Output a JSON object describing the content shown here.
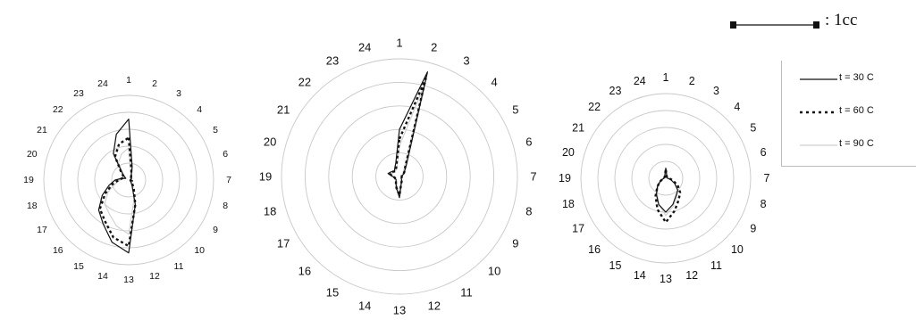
{
  "chart_data": [
    {
      "type": "radar",
      "title": "",
      "categories": [
        "1",
        "2",
        "3",
        "4",
        "5",
        "6",
        "7",
        "8",
        "9",
        "10",
        "11",
        "12",
        "13",
        "14",
        "15",
        "16",
        "17",
        "18",
        "19",
        "20",
        "21",
        "22",
        "23",
        "24"
      ],
      "rmax": 5,
      "series": [
        {
          "name": "t = 30 C",
          "values": [
            3.6,
            0.8,
            0.3,
            0.2,
            0.2,
            0.1,
            0.1,
            0.1,
            0.1,
            0.2,
            0.4,
            1.5,
            4.3,
            3.8,
            3.0,
            2.5,
            1.8,
            1.2,
            0.8,
            0.4,
            0.2,
            0.5,
            1.8,
            2.8
          ]
        },
        {
          "name": "t = 60 C",
          "values": [
            2.5,
            0.6,
            0.3,
            0.2,
            0.2,
            0.1,
            0.1,
            0.2,
            0.2,
            0.3,
            0.6,
            1.5,
            3.9,
            3.5,
            2.8,
            2.4,
            1.6,
            1.0,
            0.6,
            0.4,
            0.3,
            0.6,
            1.6,
            2.2
          ]
        },
        {
          "name": "t = 90 C",
          "values": [
            1.9,
            0.5,
            0.3,
            0.2,
            0.2,
            0.1,
            0.1,
            0.2,
            0.2,
            0.3,
            0.5,
            1.2,
            3.2,
            2.8,
            2.3,
            2.0,
            1.4,
            0.8,
            0.5,
            0.3,
            0.2,
            0.4,
            1.2,
            1.6
          ]
        }
      ]
    },
    {
      "type": "radar",
      "title": "",
      "categories": [
        "1",
        "2",
        "3",
        "4",
        "5",
        "6",
        "7",
        "8",
        "9",
        "10",
        "11",
        "12",
        "13",
        "14",
        "15",
        "16",
        "17",
        "18",
        "19",
        "20",
        "21",
        "22",
        "23",
        "24"
      ],
      "rmax": 5,
      "series": [
        {
          "name": "t = 30 C",
          "values": [
            2.0,
            4.6,
            0.6,
            0.3,
            0.2,
            0.1,
            0.1,
            0.1,
            0.1,
            0.1,
            0.2,
            0.3,
            0.9,
            0.5,
            0.3,
            0.2,
            0.2,
            0.2,
            0.3,
            0.5,
            0.4,
            0.3,
            0.4,
            0.6
          ]
        },
        {
          "name": "t = 60 C",
          "values": [
            1.6,
            4.3,
            0.5,
            0.3,
            0.2,
            0.1,
            0.1,
            0.1,
            0.1,
            0.1,
            0.2,
            0.3,
            0.8,
            0.5,
            0.3,
            0.2,
            0.2,
            0.2,
            0.3,
            0.4,
            0.4,
            0.3,
            0.3,
            0.5
          ]
        },
        {
          "name": "t = 90 C",
          "values": [
            1.3,
            3.9,
            0.4,
            0.2,
            0.2,
            0.1,
            0.1,
            0.1,
            0.1,
            0.1,
            0.2,
            0.3,
            0.7,
            0.4,
            0.3,
            0.2,
            0.2,
            0.2,
            0.2,
            0.4,
            0.3,
            0.3,
            0.3,
            0.4
          ]
        }
      ]
    },
    {
      "type": "radar",
      "title": "",
      "categories": [
        "1",
        "2",
        "3",
        "4",
        "5",
        "6",
        "7",
        "8",
        "9",
        "10",
        "11",
        "12",
        "13",
        "14",
        "15",
        "16",
        "17",
        "18",
        "19",
        "20",
        "21",
        "22",
        "23",
        "24"
      ],
      "rmax": 5,
      "series": [
        {
          "name": "t = 30 C",
          "values": [
            0.6,
            0.2,
            0.1,
            0.1,
            0.1,
            0.1,
            0.1,
            0.3,
            0.6,
            1.0,
            1.2,
            1.6,
            2.0,
            1.6,
            1.1,
            0.7,
            0.4,
            0.2,
            0.1,
            0.1,
            0.1,
            0.1,
            0.1,
            0.2
          ]
        },
        {
          "name": "t = 60 C",
          "values": [
            0.5,
            0.2,
            0.1,
            0.1,
            0.1,
            0.1,
            0.2,
            0.4,
            0.8,
            1.2,
            1.5,
            2.0,
            2.6,
            1.9,
            1.2,
            0.7,
            0.4,
            0.2,
            0.1,
            0.1,
            0.1,
            0.1,
            0.1,
            0.2
          ]
        },
        {
          "name": "t = 90 C",
          "values": [
            0.4,
            0.2,
            0.1,
            0.1,
            0.1,
            0.1,
            0.2,
            0.3,
            0.6,
            1.0,
            1.3,
            1.7,
            2.2,
            1.6,
            1.0,
            0.6,
            0.3,
            0.2,
            0.1,
            0.1,
            0.1,
            0.1,
            0.1,
            0.2
          ]
        }
      ]
    }
  ],
  "legend": {
    "placement": "right",
    "items": [
      {
        "label": "t = 30 C",
        "style": "solid",
        "color": "#111111"
      },
      {
        "label": "t = 60 C",
        "style": "dotted",
        "color": "#111111"
      },
      {
        "label": "t = 90 C",
        "style": "faint",
        "color": "#cfcfcf"
      }
    ]
  },
  "scale": {
    "label": ": 1cc"
  },
  "colors": {
    "grid": "#c8c8c8",
    "ink": "#111111",
    "faint": "#cfcfcf"
  }
}
